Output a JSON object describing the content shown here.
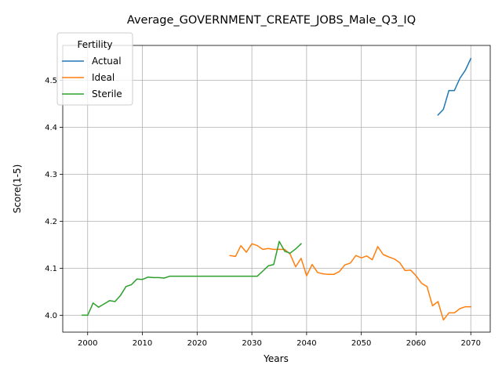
{
  "chart_data": {
    "type": "line",
    "title": "Average_GOVERNMENT_CREATE_JOBS_Male_Q3_IQ",
    "xlabel": "Years",
    "ylabel": "Score(1-5)",
    "xlim": [
      1995.45,
      2073.55
    ],
    "ylim": [
      3.964,
      4.574
    ],
    "xticks": [
      2000,
      2010,
      2020,
      2030,
      2040,
      2050,
      2060,
      2070
    ],
    "yticks": [
      4.0,
      4.1,
      4.2,
      4.3,
      4.4,
      4.5
    ],
    "ytick_labels": [
      "4.0",
      "4.1",
      "4.2",
      "4.3",
      "4.4",
      "4.5"
    ],
    "grid": true,
    "legend": {
      "title": "Fertility",
      "position": "upper-left"
    },
    "series": [
      {
        "name": "Actual",
        "color": "#1f77b4",
        "x": [
          2064,
          2065,
          2066,
          2067,
          2068,
          2069,
          2070
        ],
        "y": [
          4.426,
          4.438,
          4.478,
          4.478,
          4.504,
          4.521,
          4.546
        ]
      },
      {
        "name": "Ideal",
        "color": "#ff7f0e",
        "x": [
          2026,
          2027,
          2028,
          2029,
          2030,
          2031,
          2032,
          2033,
          2034,
          2035,
          2036,
          2037,
          2038,
          2039,
          2040,
          2041,
          2042,
          2043,
          2044,
          2045,
          2046,
          2047,
          2048,
          2049,
          2050,
          2051,
          2052,
          2053,
          2054,
          2055,
          2056,
          2057,
          2058,
          2059,
          2060,
          2061,
          2062,
          2063,
          2064,
          2065,
          2066,
          2067,
          2068,
          2069,
          2070
        ],
        "y": [
          4.127,
          4.125,
          4.148,
          4.134,
          4.152,
          4.148,
          4.14,
          4.142,
          4.14,
          4.14,
          4.14,
          4.13,
          4.103,
          4.121,
          4.084,
          4.108,
          4.091,
          4.088,
          4.087,
          4.087,
          4.093,
          4.107,
          4.111,
          4.127,
          4.122,
          4.126,
          4.118,
          4.146,
          4.129,
          4.124,
          4.12,
          4.112,
          4.095,
          4.096,
          4.084,
          4.068,
          4.061,
          4.02,
          4.029,
          3.99,
          4.005,
          4.005,
          4.014,
          4.018,
          4.018
        ]
      },
      {
        "name": "Sterile",
        "color": "#2ca02c",
        "x": [
          1999,
          2000,
          2001,
          2002,
          2003,
          2004,
          2005,
          2006,
          2007,
          2008,
          2009,
          2010,
          2011,
          2012,
          2013,
          2014,
          2015,
          2016,
          2017,
          2018,
          2019,
          2020,
          2021,
          2022,
          2023,
          2024,
          2025,
          2026,
          2027,
          2028,
          2029,
          2030,
          2031,
          2032,
          2033,
          2034,
          2035,
          2036,
          2037,
          2038,
          2039
        ],
        "y": [
          4.0,
          4.0,
          4.026,
          4.017,
          4.024,
          4.031,
          4.029,
          4.042,
          4.061,
          4.065,
          4.077,
          4.076,
          4.081,
          4.08,
          4.08,
          4.079,
          4.083,
          4.083,
          4.083,
          4.083,
          4.083,
          4.083,
          4.083,
          4.083,
          4.083,
          4.083,
          4.083,
          4.083,
          4.083,
          4.083,
          4.083,
          4.083,
          4.083,
          4.094,
          4.105,
          4.108,
          4.157,
          4.136,
          4.132,
          4.141,
          4.152
        ]
      }
    ]
  }
}
